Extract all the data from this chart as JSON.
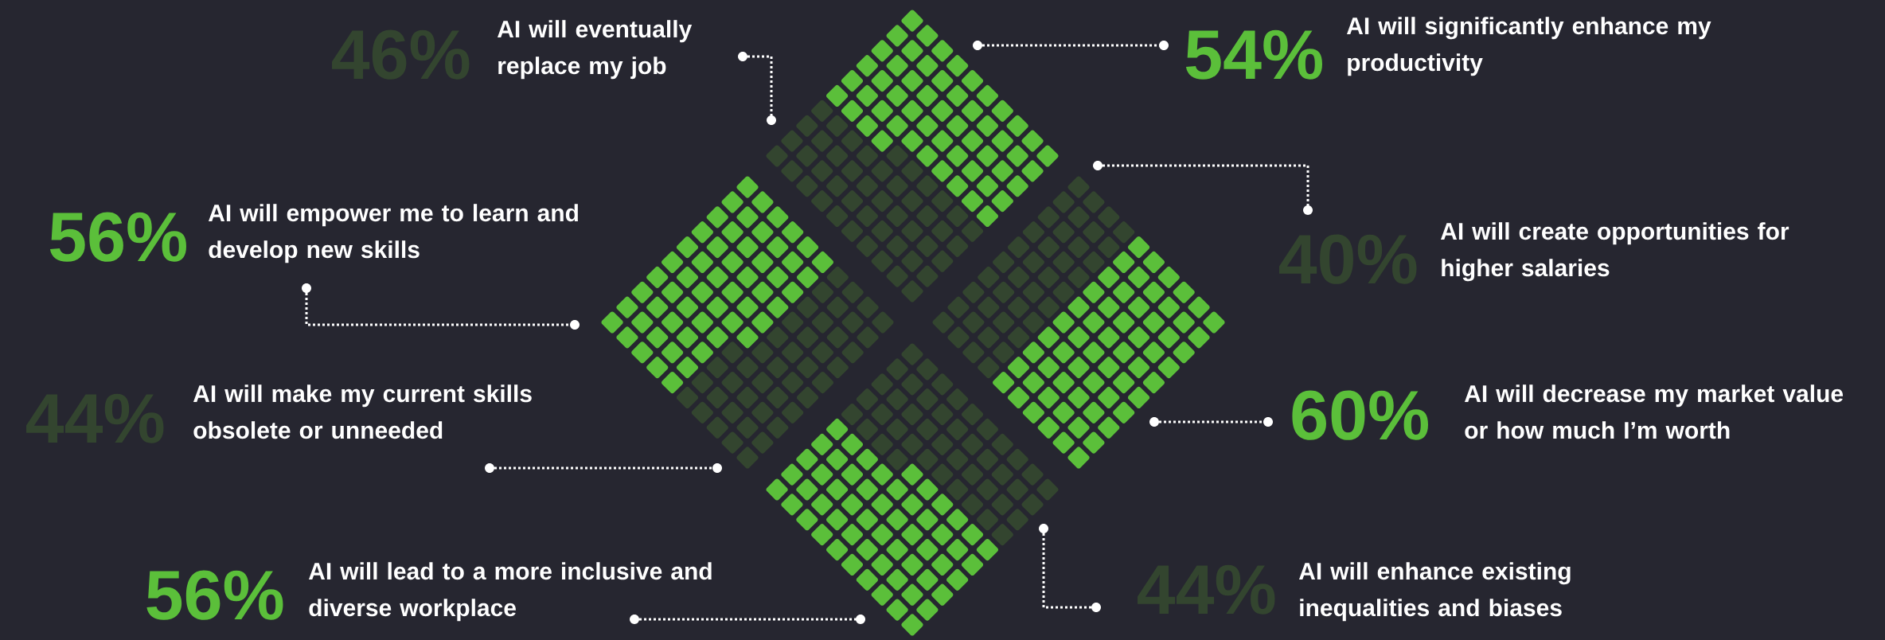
{
  "chart_data": {
    "type": "other",
    "categories": [
      "AI will eventually replace my job",
      "AI will significantly enhance my productivity",
      "AI will empower me to learn and develop new skills",
      "AI will create opportunities for higher salaries",
      "AI will make my current skills obsolete or unneeded",
      "AI will decrease my market value or how much I’m worth",
      "AI will lead to a more inclusive and diverse workplace",
      "AI will enhance existing inequalities and biases"
    ],
    "values": [
      46,
      54,
      56,
      40,
      44,
      60,
      56,
      44
    ],
    "value_labels": [
      "46%",
      "54%",
      "56%",
      "40%",
      "44%",
      "60%",
      "56%",
      "44%"
    ],
    "colors": [
      "#33452f",
      "#5bbf3a",
      "#5bbf3a",
      "#33452f",
      "#33452f",
      "#5bbf3a",
      "#5bbf3a",
      "#33452f"
    ]
  }
}
